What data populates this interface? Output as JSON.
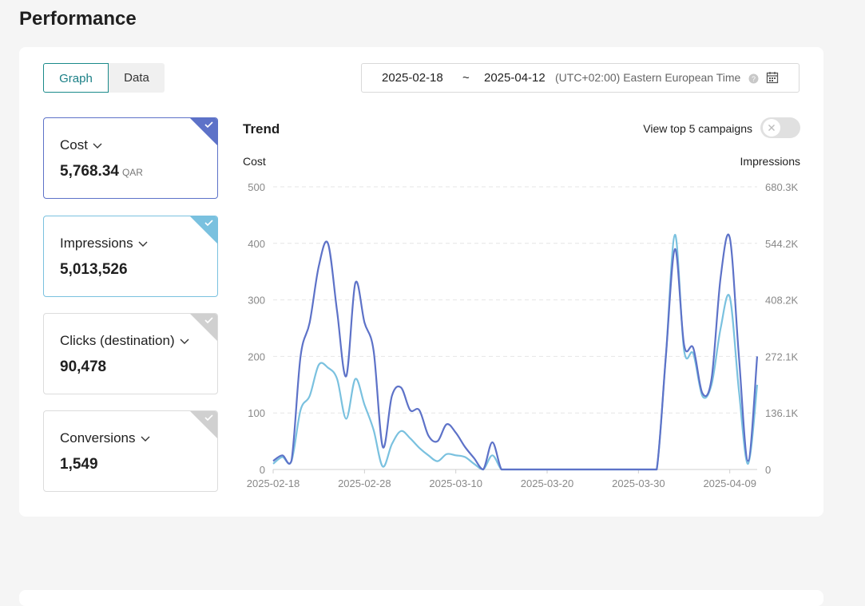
{
  "header": {
    "title": "Performance"
  },
  "tabs": [
    "Graph",
    "Data"
  ],
  "date_range": {
    "start": "2025-02-18",
    "separator": "~",
    "end": "2025-04-12",
    "timezone": "(UTC+02:00) Eastern European Time"
  },
  "metrics": [
    {
      "label": "Cost",
      "value": "5,768.34",
      "unit": "QAR"
    },
    {
      "label": "Impressions",
      "value": "5,013,526"
    },
    {
      "label": "Clicks (destination)",
      "value": "90,478"
    },
    {
      "label": "Conversions",
      "value": "1,549"
    }
  ],
  "toggle_label": "View top 5 campaigns",
  "chart_data": {
    "type": "line",
    "title": "Trend",
    "y_label": "Cost",
    "y2_label": "Impressions",
    "x": [
      "2025-02-18",
      "2025-02-19",
      "2025-02-20",
      "2025-02-21",
      "2025-02-22",
      "2025-02-23",
      "2025-02-24",
      "2025-02-25",
      "2025-02-26",
      "2025-02-27",
      "2025-02-28",
      "2025-03-01",
      "2025-03-02",
      "2025-03-03",
      "2025-03-04",
      "2025-03-05",
      "2025-03-06",
      "2025-03-07",
      "2025-03-08",
      "2025-03-09",
      "2025-03-10",
      "2025-03-11",
      "2025-03-12",
      "2025-03-13",
      "2025-03-14",
      "2025-03-15",
      "2025-03-16",
      "2025-03-17",
      "2025-03-18",
      "2025-03-19",
      "2025-03-20",
      "2025-03-21",
      "2025-03-22",
      "2025-03-23",
      "2025-03-24",
      "2025-03-25",
      "2025-03-26",
      "2025-03-27",
      "2025-03-28",
      "2025-03-29",
      "2025-03-30",
      "2025-03-31",
      "2025-04-01",
      "2025-04-02",
      "2025-04-03",
      "2025-04-04",
      "2025-04-05",
      "2025-04-06",
      "2025-04-07",
      "2025-04-08",
      "2025-04-09",
      "2025-04-10",
      "2025-04-11",
      "2025-04-12"
    ],
    "xticks": [
      "2025-02-18",
      "2025-02-28",
      "2025-03-10",
      "2025-03-20",
      "2025-03-30",
      "2025-04-09"
    ],
    "ylim": [
      0,
      500
    ],
    "yticks": [
      0,
      100,
      200,
      300,
      400,
      500
    ],
    "y2lim": [
      0,
      680300
    ],
    "y2ticks": [
      0,
      {
        "value": 136060,
        "label": "136.1K"
      },
      {
        "value": 272120,
        "label": "272.1K"
      },
      {
        "value": 408180,
        "label": "408.2K"
      },
      {
        "value": 544240,
        "label": "544.2K"
      },
      {
        "value": 680300,
        "label": "680.3K"
      }
    ],
    "grid": true,
    "series": [
      {
        "name": "Cost",
        "color": "#5d72c8",
        "values": [
          15,
          25,
          15,
          200,
          260,
          360,
          400,
          280,
          165,
          330,
          260,
          210,
          40,
          130,
          145,
          105,
          105,
          60,
          50,
          80,
          65,
          40,
          20,
          0,
          48,
          0,
          0,
          0,
          0,
          0,
          0,
          0,
          0,
          0,
          0,
          0,
          0,
          0,
          0,
          0,
          0,
          0,
          0,
          200,
          390,
          220,
          215,
          135,
          160,
          340,
          410,
          200,
          15,
          200
        ]
      },
      {
        "name": "Impressions",
        "color": "#7ac1df",
        "axis": "y2",
        "values": [
          13600,
          30000,
          20000,
          143000,
          177000,
          252000,
          245000,
          218000,
          122000,
          218000,
          156000,
          95000,
          7000,
          61000,
          92500,
          75000,
          52000,
          34000,
          20000,
          37000,
          34000,
          30000,
          13600,
          0,
          34000,
          0,
          0,
          0,
          0,
          0,
          0,
          0,
          0,
          0,
          0,
          0,
          0,
          0,
          0,
          0,
          0,
          0,
          0,
          272000,
          565000,
          286000,
          279000,
          177000,
          204000,
          340000,
          415000,
          190000,
          13600,
          204000
        ]
      }
    ]
  }
}
